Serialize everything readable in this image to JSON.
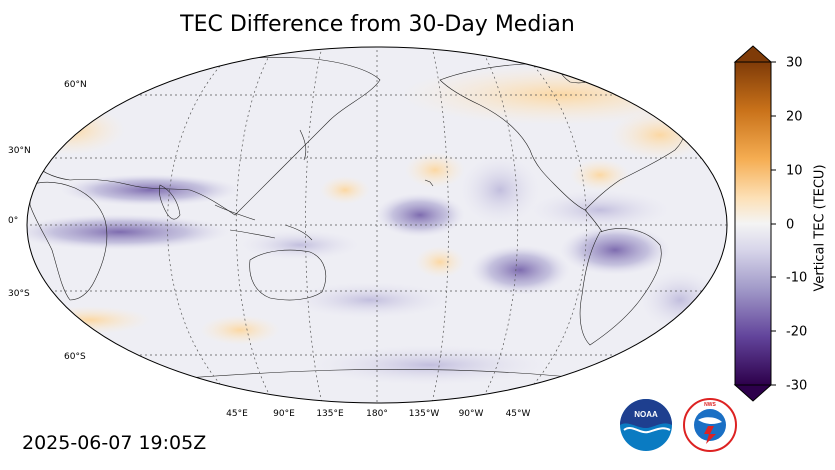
{
  "title": "TEC Difference from 30-Day Median",
  "timestamp": "2025-06-07 19:05Z",
  "colorbar": {
    "label": "Vertical TEC (TECU)",
    "ticks": [
      "30",
      "20",
      "10",
      "0",
      "-10",
      "-20",
      "-30"
    ],
    "range": [
      -30,
      30
    ]
  },
  "lat_labels": [
    "60°N",
    "30°N",
    "0°",
    "30°S",
    "60°S"
  ],
  "lon_labels": [
    "45°E",
    "90°E",
    "135°E",
    "180°",
    "135°W",
    "90°W",
    "45°W"
  ],
  "logos": {
    "noaa": "NOAA",
    "nws": "NATIONAL WEATHER SERVICE"
  },
  "colors": {
    "positive": "#e08a1c",
    "negative": "#4a2a7a",
    "neutral": "#f2f2f2"
  }
}
